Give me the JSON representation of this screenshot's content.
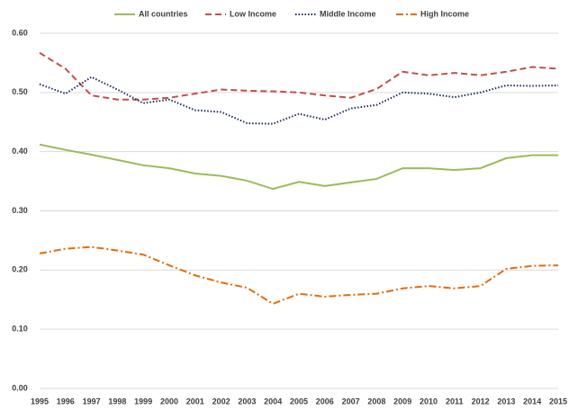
{
  "chart_data": {
    "type": "line",
    "categories": [
      "1995",
      "1996",
      "1997",
      "1998",
      "1999",
      "2000",
      "2001",
      "2002",
      "2003",
      "2004",
      "2005",
      "2006",
      "2007",
      "2008",
      "2009",
      "2010",
      "2011",
      "2012",
      "2013",
      "2014",
      "2015"
    ],
    "series": [
      {
        "name": "All countries",
        "color": "#9bbb59",
        "line_style": "solid",
        "values": [
          0.412,
          0.403,
          0.395,
          0.386,
          0.377,
          0.372,
          0.363,
          0.359,
          0.351,
          0.337,
          0.349,
          0.342,
          0.348,
          0.354,
          0.372,
          0.372,
          0.369,
          0.372,
          0.389,
          0.394,
          0.394
        ]
      },
      {
        "name": "Low Income",
        "color": "#c0504d",
        "line_style": "dashed",
        "values": [
          0.567,
          0.54,
          0.495,
          0.488,
          0.488,
          0.491,
          0.498,
          0.505,
          0.503,
          0.502,
          0.5,
          0.495,
          0.491,
          0.506,
          0.535,
          0.529,
          0.533,
          0.529,
          0.535,
          0.543,
          0.54
        ]
      },
      {
        "name": "Middle Income",
        "color": "#1f2d5c",
        "line_style": "dotted",
        "values": [
          0.514,
          0.498,
          0.526,
          0.505,
          0.482,
          0.488,
          0.47,
          0.467,
          0.448,
          0.447,
          0.464,
          0.454,
          0.473,
          0.479,
          0.5,
          0.498,
          0.492,
          0.5,
          0.512,
          0.511,
          0.512
        ]
      },
      {
        "name": "High Income",
        "color": "#e46c0a",
        "line_style": "dashdot",
        "values": [
          0.228,
          0.236,
          0.239,
          0.233,
          0.226,
          0.208,
          0.191,
          0.179,
          0.17,
          0.143,
          0.16,
          0.155,
          0.158,
          0.16,
          0.169,
          0.173,
          0.169,
          0.173,
          0.202,
          0.207,
          0.208
        ]
      }
    ],
    "ylim": [
      0,
      0.6
    ],
    "yticks": [
      {
        "value": 0,
        "label": "0.00"
      },
      {
        "value": 0.1,
        "label": "0.10"
      },
      {
        "value": 0.2,
        "label": "0.20"
      },
      {
        "value": 0.3,
        "label": "0.30"
      },
      {
        "value": 0.4,
        "label": "0.40"
      },
      {
        "value": 0.5,
        "label": "0.50"
      },
      {
        "value": 0.6,
        "label": "0.60"
      }
    ],
    "grid": true,
    "legend": "top"
  }
}
